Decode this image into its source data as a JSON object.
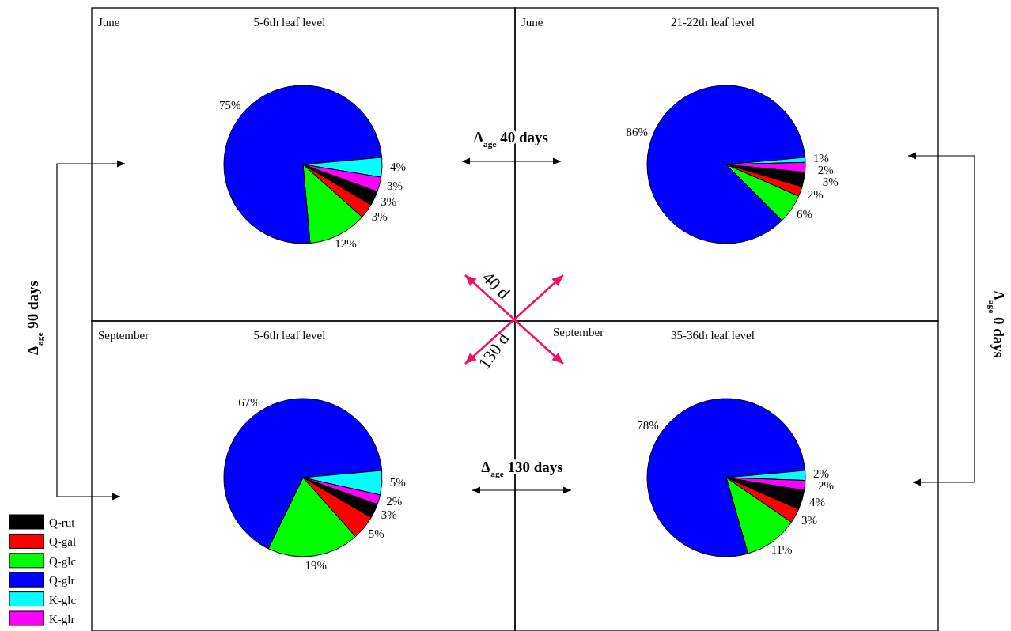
{
  "chart_data": [
    {
      "type": "pie",
      "subtitle": "June",
      "title": "5-6th leaf level",
      "categories": [
        "Q-rut",
        "Q-gal",
        "Q-glc",
        "Q-glr",
        "K-glc",
        "K-glr"
      ],
      "colors": [
        "#000000",
        "#ff0000",
        "#00ff00",
        "#0000ff",
        "#00ffff",
        "#ff00ff"
      ],
      "values": [
        3,
        3,
        12,
        75,
        4,
        3
      ],
      "value_labels": [
        "3%",
        "3%",
        "12%",
        "75%",
        "4%",
        "3%"
      ],
      "legend": "bottom left",
      "annotations": [
        "Δ$_{age}$ 40 days",
        "Δ$_{age}$ 90 days",
        "40 d",
        "130 d"
      ]
    },
    {
      "type": "pie",
      "subtitle": "June",
      "title": "21-22th leaf level",
      "categories": [
        null,
        null,
        null,
        null,
        null,
        null
      ],
      "colors": [
        "#000000",
        "#ff0000",
        "#00ff00",
        "#0000ff",
        "#00ffff",
        "#ff00ff"
      ],
      "values": [
        3,
        2,
        6,
        86,
        1,
        2
      ],
      "value_labels": [
        "3%",
        "2%",
        "6%",
        "86%",
        "1%",
        "2%"
      ],
      "annotations": [
        "Δ$_{age}$ 0 days"
      ]
    },
    {
      "type": "pie",
      "subtitle": "September",
      "title": "5-6th leaf level",
      "categories": [
        null,
        null,
        null,
        null,
        null,
        null
      ],
      "colors": [
        "#000000",
        "#ff0000",
        "#00ff00",
        "#0000ff",
        "#00ffff",
        "#ff00ff"
      ],
      "values": [
        3,
        5,
        19,
        67,
        5,
        2
      ],
      "value_labels": [
        "3%",
        "5%",
        "19%",
        "67%",
        "5%",
        "2%"
      ],
      "annotations": [
        "Δ$_{age}$ 130 days"
      ]
    },
    {
      "type": "pie",
      "subtitle": "September",
      "title": "35-36th leaf level",
      "categories": [
        null,
        null,
        null,
        null,
        null,
        null
      ],
      "colors": [
        "#000000",
        "#ff0000",
        "#00ff00",
        "#0000ff",
        "#00ffff",
        "#ff00ff"
      ],
      "values": [
        4,
        3,
        11,
        78,
        2,
        2
      ],
      "value_labels": [
        "4%",
        "3%",
        "11%",
        "78%",
        "2%",
        "2%"
      ]
    }
  ]
}
